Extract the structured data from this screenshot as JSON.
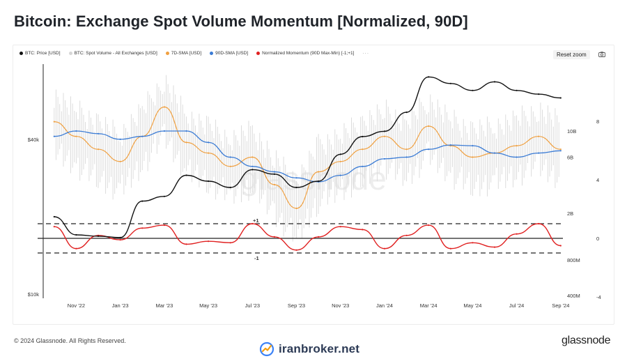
{
  "title": "Bitcoin: Exchange Spot Volume Momentum [Normalized, 90D]",
  "legend": [
    {
      "label": "BTC: Price [USD]",
      "color": "#111111"
    },
    {
      "label": "BTC: Spot Volume - All Exchanges [USD]",
      "color": "#d6d6d6"
    },
    {
      "label": "7D-SMA [USD]",
      "color": "#f0a040"
    },
    {
      "label": "90D-SMA [USD]",
      "color": "#3a7bd5"
    },
    {
      "label": "Normalized Momentum (90D Max-Min) [-1;+1]",
      "color": "#e02020"
    }
  ],
  "legend_more": "···",
  "reset_zoom": "Reset zoom",
  "watermark": "glassnode",
  "footer": "© 2024 Glassnode. All Rights Reserved.",
  "brand": "glassnode",
  "site_watermark": "iranbroker.net",
  "chart_data": {
    "type": "line",
    "x_ticks": [
      "Nov '22",
      "Jan '23",
      "Mar '23",
      "May '23",
      "Jul '23",
      "Sep '23",
      "Nov '23",
      "Jan '24",
      "Mar '24",
      "May '24",
      "Jul '24",
      "Sep '24"
    ],
    "left_axis": {
      "scale": "log",
      "ticks": [
        "$40k",
        "$10k"
      ]
    },
    "right_axis_volume": {
      "scale": "log",
      "ticks": [
        "10B",
        "6B",
        "2B",
        "800M",
        "400M"
      ]
    },
    "right_axis_momentum": {
      "ticks": [
        "8",
        "4",
        "0",
        "-4"
      ]
    },
    "reference_lines": [
      {
        "label": "+1",
        "value": 1
      },
      {
        "label": "-1",
        "value": -1
      }
    ],
    "series": [
      {
        "name": "BTC: Price [USD]",
        "color": "#111111",
        "unit": "USD",
        "points": [
          [
            "Oct '22",
            20000
          ],
          [
            "Nov '22",
            17000
          ],
          [
            "Dec '22",
            16800
          ],
          [
            "Jan '23",
            16600
          ],
          [
            "Feb '23",
            23000
          ],
          [
            "Mar '23",
            24000
          ],
          [
            "Apr '23",
            29000
          ],
          [
            "May '23",
            27500
          ],
          [
            "Jun '23",
            26000
          ],
          [
            "Jul '23",
            30500
          ],
          [
            "Aug '23",
            29300
          ],
          [
            "Sep '23",
            26000
          ],
          [
            "Oct '23",
            27500
          ],
          [
            "Nov '23",
            35000
          ],
          [
            "Dec '23",
            41000
          ],
          [
            "Jan '24",
            43000
          ],
          [
            "Feb '24",
            51000
          ],
          [
            "Mar '24",
            70000
          ],
          [
            "Apr '24",
            66000
          ],
          [
            "May '24",
            62000
          ],
          [
            "Jun '24",
            67000
          ],
          [
            "Jul '24",
            62000
          ],
          [
            "Aug '24",
            60000
          ],
          [
            "Sep '24",
            58000
          ]
        ]
      },
      {
        "name": "7D-SMA [USD]",
        "color": "#f0a040",
        "unit": "USD",
        "points": [
          [
            "Oct '22",
            12000000000
          ],
          [
            "Nov '22",
            9000000000
          ],
          [
            "Dec '22",
            7000000000
          ],
          [
            "Jan '23",
            5500000000
          ],
          [
            "Feb '23",
            9000000000
          ],
          [
            "Mar '23",
            16000000000
          ],
          [
            "Apr '23",
            8000000000
          ],
          [
            "May '23",
            6500000000
          ],
          [
            "Jun '23",
            5000000000
          ],
          [
            "Jul '23",
            6000000000
          ],
          [
            "Aug '23",
            3500000000
          ],
          [
            "Sep '23",
            2200000000
          ],
          [
            "Oct '23",
            4500000000
          ],
          [
            "Nov '23",
            5500000000
          ],
          [
            "Dec '23",
            7000000000
          ],
          [
            "Jan '24",
            9000000000
          ],
          [
            "Feb '24",
            7000000000
          ],
          [
            "Mar '24",
            11000000000
          ],
          [
            "Apr '24",
            7500000000
          ],
          [
            "May '24",
            6000000000
          ],
          [
            "Jun '24",
            6500000000
          ],
          [
            "Jul '24",
            7500000000
          ],
          [
            "Aug '24",
            9000000000
          ],
          [
            "Sep '24",
            7000000000
          ]
        ]
      },
      {
        "name": "90D-SMA [USD]",
        "color": "#3a7bd5",
        "unit": "USD",
        "points": [
          [
            "Oct '22",
            9000000000
          ],
          [
            "Nov '22",
            10000000000
          ],
          [
            "Dec '22",
            9500000000
          ],
          [
            "Jan '23",
            8500000000
          ],
          [
            "Feb '23",
            9000000000
          ],
          [
            "Mar '23",
            10000000000
          ],
          [
            "Apr '23",
            10000000000
          ],
          [
            "May '23",
            8000000000
          ],
          [
            "Jun '23",
            6000000000
          ],
          [
            "Jul '23",
            5000000000
          ],
          [
            "Aug '23",
            4500000000
          ],
          [
            "Sep '23",
            4000000000
          ],
          [
            "Oct '23",
            3700000000
          ],
          [
            "Nov '23",
            4200000000
          ],
          [
            "Dec '23",
            5000000000
          ],
          [
            "Jan '24",
            5800000000
          ],
          [
            "Feb '24",
            6000000000
          ],
          [
            "Mar '24",
            7000000000
          ],
          [
            "Apr '24",
            7600000000
          ],
          [
            "May '24",
            7500000000
          ],
          [
            "Jun '24",
            6500000000
          ],
          [
            "Jul '24",
            6000000000
          ],
          [
            "Aug '24",
            6500000000
          ],
          [
            "Sep '24",
            6800000000
          ]
        ]
      },
      {
        "name": "Normalized Momentum (90D Max-Min) [-1;+1]",
        "color": "#e02020",
        "points": [
          [
            "Oct '22",
            0.8
          ],
          [
            "Nov '22",
            -0.7
          ],
          [
            "Dec '22",
            0.2
          ],
          [
            "Jan '23",
            -0.1
          ],
          [
            "Feb '23",
            0.7
          ],
          [
            "Mar '23",
            0.9
          ],
          [
            "Apr '23",
            -0.4
          ],
          [
            "May '23",
            -0.2
          ],
          [
            "Jun '23",
            -0.3
          ],
          [
            "Jul '23",
            1.0
          ],
          [
            "Aug '23",
            0.1
          ],
          [
            "Sep '23",
            -0.8
          ],
          [
            "Oct '23",
            0.1
          ],
          [
            "Nov '23",
            0.8
          ],
          [
            "Dec '23",
            0.6
          ],
          [
            "Jan '24",
            -0.7
          ],
          [
            "Feb '24",
            0.2
          ],
          [
            "Mar '24",
            0.9
          ],
          [
            "Apr '24",
            -0.7
          ],
          [
            "May '24",
            -0.3
          ],
          [
            "Jun '24",
            -0.6
          ],
          [
            "Jul '24",
            0.3
          ],
          [
            "Aug '24",
            1.0
          ],
          [
            "Sep '24",
            -0.5
          ]
        ]
      }
    ]
  }
}
